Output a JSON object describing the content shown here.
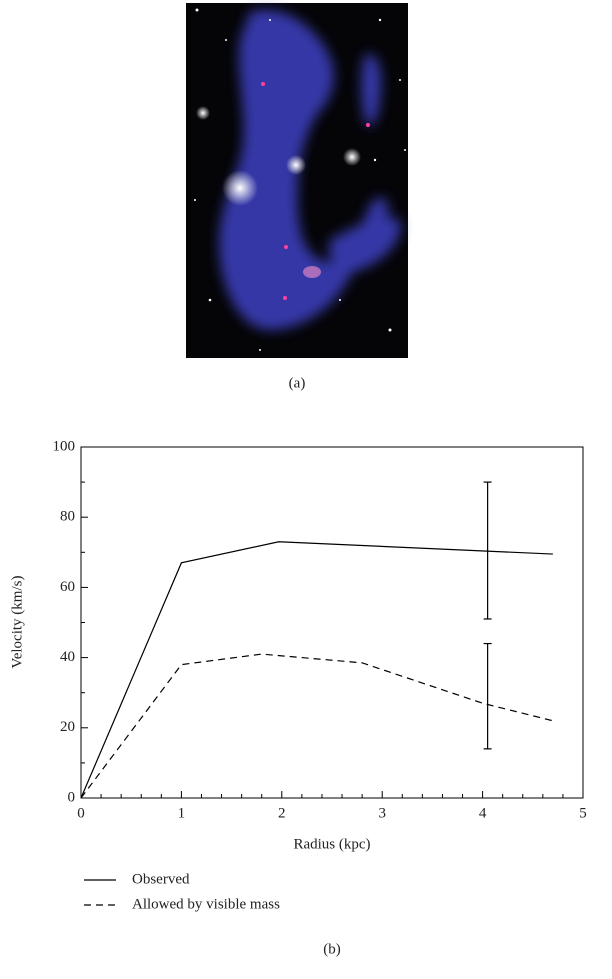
{
  "figure": {
    "panel_a_caption": "(a)",
    "panel_b_caption": "(b)"
  },
  "chart_data": {
    "type": "line",
    "xlabel": "Radius (kpc)",
    "ylabel": "Velocity (km/s)",
    "xlim": [
      0,
      5
    ],
    "ylim": [
      0,
      100
    ],
    "xticks": [
      0,
      1,
      2,
      3,
      4,
      5
    ],
    "yticks": [
      0,
      20,
      40,
      60,
      80,
      100
    ],
    "xminorticks": [
      0.2,
      0.4,
      0.6,
      0.8,
      1.2,
      1.4,
      1.6,
      1.8,
      2.2,
      2.4,
      2.6,
      2.8,
      3.2,
      3.4,
      3.6,
      3.8,
      4.2,
      4.4,
      4.6,
      4.8
    ],
    "yminorticks": [
      10,
      30,
      50,
      70,
      90
    ],
    "series": [
      {
        "name": "Observed",
        "color": "#000000",
        "dash": "solid",
        "x": [
          0,
          1,
          1.97,
          4.7
        ],
        "values": [
          0,
          67,
          73,
          69.5
        ]
      },
      {
        "name": "Allowed by visible mass",
        "color": "#000000",
        "dash": "dashed",
        "x": [
          0,
          1,
          1.8,
          2.8,
          4,
          4.7
        ],
        "values": [
          0,
          38,
          41,
          38.5,
          27,
          22
        ]
      }
    ],
    "error_bars": [
      {
        "x": 4.05,
        "low": 51,
        "high": 90
      },
      {
        "x": 4.05,
        "low": 14,
        "high": 44
      }
    ]
  }
}
